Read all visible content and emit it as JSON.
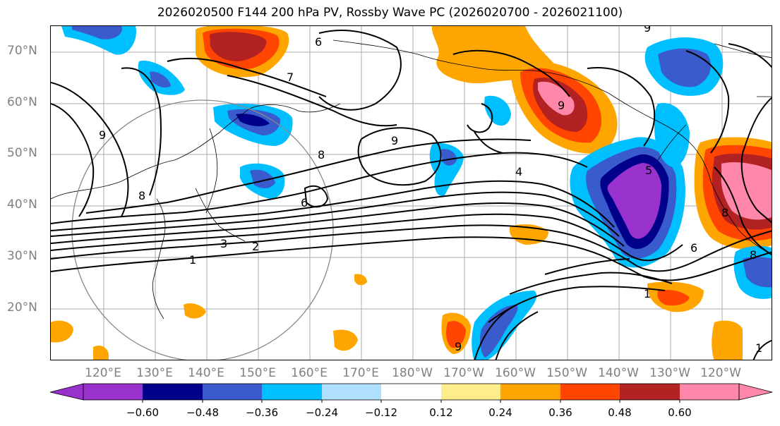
{
  "title": "2026020500 F144 200 hPa PV, Rossby Wave PC (2026020700 - 2026021100)",
  "lat_labels": [
    "70°N",
    "60°N",
    "50°N",
    "40°N",
    "30°N",
    "20°N"
  ],
  "lon_labels": [
    "120°E",
    "130°E",
    "140°E",
    "150°E",
    "160°E",
    "170°E",
    "180°W",
    "170°W",
    "160°W",
    "150°W",
    "140°W",
    "130°W",
    "120°W"
  ],
  "contour_labels": [
    "6",
    "7",
    "9",
    "9",
    "8",
    "9",
    "8",
    "6",
    "1",
    "3",
    "2",
    "4",
    "9",
    "5",
    "8",
    "8",
    "6",
    "1",
    "9",
    "1"
  ],
  "colorbar": {
    "ticks": [
      "−0.60",
      "−0.48",
      "−0.36",
      "−0.24",
      "−0.12",
      "0.12",
      "0.24",
      "0.36",
      "0.48",
      "0.60"
    ],
    "colors": [
      "#9932cc",
      "#00008b",
      "#3a5bcc",
      "#00bfff",
      "#b0e0ff",
      "#ffffff",
      "#ffec8b",
      "#ffa500",
      "#ff4500",
      "#b22222",
      "#ff88aa"
    ]
  }
}
